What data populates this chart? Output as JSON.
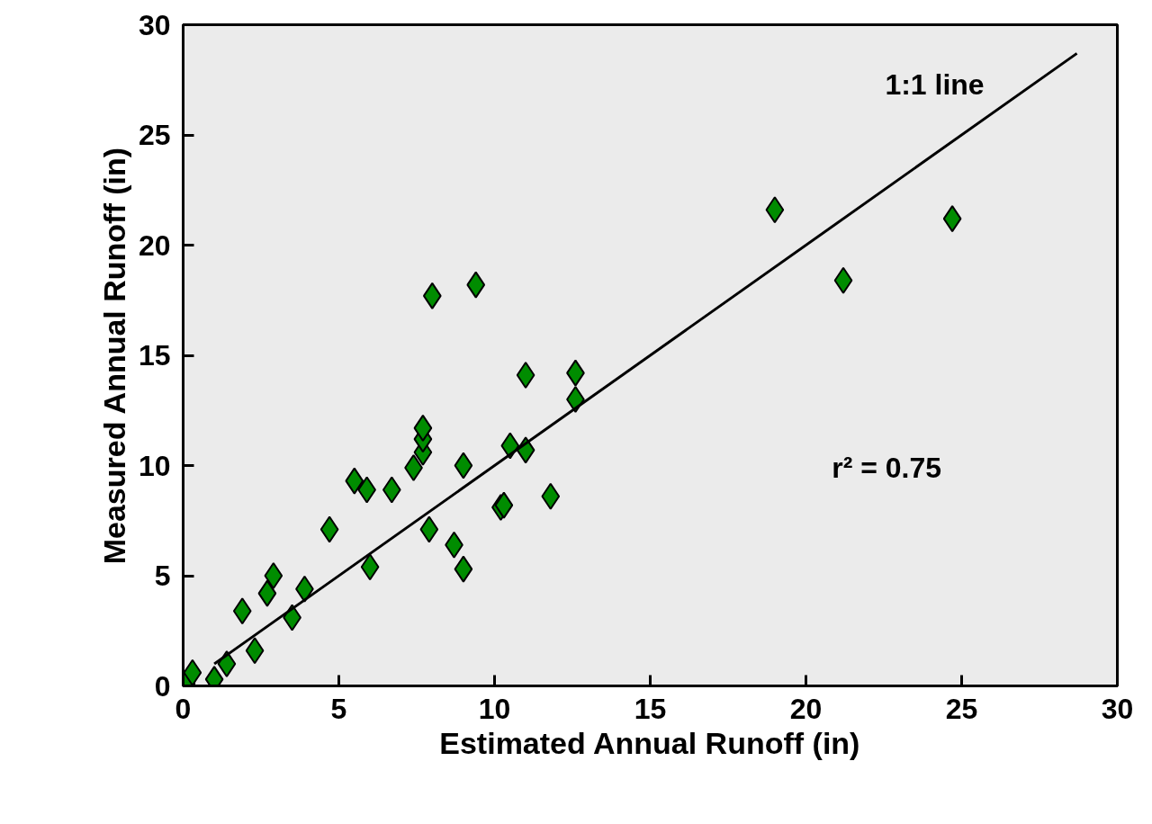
{
  "chart_data": {
    "type": "scatter",
    "xlabel": "Estimated Annual Runoff (in)",
    "ylabel": "Measured Annual Runoff (in)",
    "xlim": [
      0,
      30
    ],
    "ylim": [
      0,
      30
    ],
    "xticks": [
      0,
      5,
      10,
      15,
      20,
      25,
      30
    ],
    "yticks": [
      0,
      5,
      10,
      15,
      20,
      25,
      30
    ],
    "grid": false,
    "annotations": [
      "r² = 0.75"
    ],
    "series": [
      {
        "marker": "diamond",
        "color": "#008c00",
        "x": [
          0.1,
          0.3,
          1.0,
          1.4,
          2.3,
          1.9,
          2.7,
          2.9,
          3.5,
          3.9,
          4.7,
          5.5,
          5.9,
          6.7,
          6.0,
          7.4,
          7.7,
          7.7,
          7.7,
          8.0,
          9.4,
          9.0,
          7.9,
          8.7,
          9.0,
          10.2,
          10.3,
          10.5,
          11.0,
          11.8,
          11.0,
          12.6,
          12.6,
          19.0,
          21.2,
          24.7
        ],
        "values": [
          0.1,
          0.6,
          0.3,
          1.0,
          1.6,
          3.4,
          4.2,
          5.0,
          3.1,
          4.4,
          7.1,
          9.3,
          8.9,
          8.9,
          5.4,
          9.9,
          10.6,
          11.2,
          11.7,
          17.7,
          18.2,
          10.0,
          7.1,
          6.4,
          5.3,
          8.1,
          8.2,
          10.9,
          10.7,
          8.6,
          14.1,
          14.2,
          13.0,
          21.6,
          18.4,
          21.2
        ]
      },
      {
        "type": "line",
        "name": "1:1 line",
        "color": "#000000",
        "x": [
          1.0,
          28.7
        ],
        "values": [
          1.0,
          28.7
        ]
      }
    ]
  }
}
